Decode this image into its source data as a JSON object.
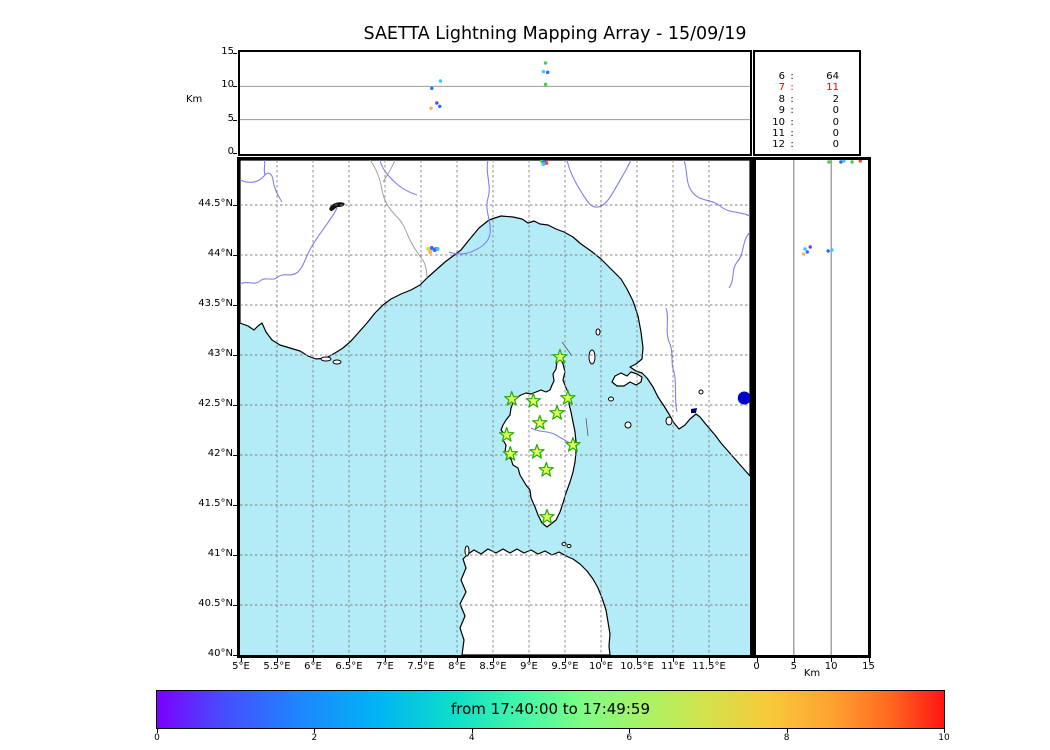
{
  "title": "SAETTA Lightning Mapping Array - 15/09/19",
  "panels": {
    "top": {
      "ylabel": "Km",
      "yticks": [
        {
          "v": 0,
          "label": "0"
        },
        {
          "v": 5,
          "label": "5"
        },
        {
          "v": 10,
          "label": "10"
        },
        {
          "v": 15,
          "label": "15"
        }
      ],
      "gridlines": [
        5,
        10
      ]
    },
    "stats": {
      "rows": [
        {
          "label": "6",
          "value": "64",
          "color": "#000000"
        },
        {
          "label": "7",
          "value": "11",
          "color": "#e8000b"
        },
        {
          "label": "8",
          "value": "2",
          "color": "#000000"
        },
        {
          "label": "9",
          "value": "0",
          "color": "#000000"
        },
        {
          "label": "10",
          "value": "0",
          "color": "#000000"
        },
        {
          "label": "11",
          "value": "0",
          "color": "#000000"
        },
        {
          "label": "12",
          "value": "0",
          "color": "#000000"
        }
      ]
    },
    "map": {
      "sea_color": "#b3ecf6",
      "land_color": "#ffffff",
      "river_color": "#8080ee",
      "lat_ticks": [
        {
          "v": 44.5,
          "label": "44.5°N"
        },
        {
          "v": 44,
          "label": "44°N"
        },
        {
          "v": 43.5,
          "label": "43.5°N"
        },
        {
          "v": 43,
          "label": "43°N"
        },
        {
          "v": 42.5,
          "label": "42.5°N"
        },
        {
          "v": 42,
          "label": "42°N"
        },
        {
          "v": 41.5,
          "label": "41.5°N"
        },
        {
          "v": 41,
          "label": "41°N"
        },
        {
          "v": 40.5,
          "label": "40.5°N"
        },
        {
          "v": 40,
          "label": "40°N"
        }
      ],
      "lon_ticks": [
        {
          "v": 5,
          "label": "5°E"
        },
        {
          "v": 5.5,
          "label": "5.5°E"
        },
        {
          "v": 6,
          "label": "6°E"
        },
        {
          "v": 6.5,
          "label": "6.5°E"
        },
        {
          "v": 7,
          "label": "7°E"
        },
        {
          "v": 7.5,
          "label": "7.5°E"
        },
        {
          "v": 8,
          "label": "8°E"
        },
        {
          "v": 8.5,
          "label": "8.5°E"
        },
        {
          "v": 9,
          "label": "9°E"
        },
        {
          "v": 9.5,
          "label": "9.5°E"
        },
        {
          "v": 10,
          "label": "10°E"
        },
        {
          "v": 10.5,
          "label": "10.5°E"
        },
        {
          "v": 11,
          "label": "11°E"
        },
        {
          "v": 11.5,
          "label": "11.5°E"
        }
      ],
      "station_style": {
        "fill": "#e8ff60",
        "stroke": "#1faf00"
      },
      "marker": {
        "lon": 11.99,
        "lat": 42.57,
        "color": "#0000cc",
        "radius": 6.5
      }
    },
    "right": {
      "xlabel": "Km",
      "xticks": [
        {
          "v": 0,
          "label": "0"
        },
        {
          "v": 5,
          "label": "5"
        },
        {
          "v": 10,
          "label": "10"
        },
        {
          "v": 15,
          "label": "15"
        }
      ],
      "gridlines": [
        5,
        10
      ]
    },
    "colorbar": {
      "label": "from 17:40:00 to 17:49:59",
      "ticks": [
        {
          "v": 0,
          "label": "0"
        },
        {
          "v": 2,
          "label": "2"
        },
        {
          "v": 4,
          "label": "4"
        },
        {
          "v": 6,
          "label": "6"
        },
        {
          "v": 8,
          "label": "8"
        },
        {
          "v": 10,
          "label": "10"
        }
      ],
      "gradient": [
        {
          "p": 0,
          "c": "#7a00ff"
        },
        {
          "p": 8,
          "c": "#4a4aff"
        },
        {
          "p": 18,
          "c": "#1e86ff"
        },
        {
          "p": 28,
          "c": "#00b4f4"
        },
        {
          "p": 38,
          "c": "#0fdfc8"
        },
        {
          "p": 47,
          "c": "#49f7a7"
        },
        {
          "p": 54,
          "c": "#7dfc84"
        },
        {
          "p": 62,
          "c": "#a9f266"
        },
        {
          "p": 70,
          "c": "#d4e24a"
        },
        {
          "p": 78,
          "c": "#f7c93a"
        },
        {
          "p": 86,
          "c": "#ffa030"
        },
        {
          "p": 93,
          "c": "#ff6a20"
        },
        {
          "p": 100,
          "c": "#ff1512"
        }
      ]
    }
  },
  "chart_data": [
    {
      "type": "scatter",
      "panel": "top",
      "ylabel": "Km",
      "ylim": [
        0,
        15
      ],
      "xlim_lon": [
        5,
        12.08
      ],
      "points_lon_alt": [
        [
          9.23,
          13.5,
          "#3fd43f"
        ],
        [
          9.2,
          12.2,
          "#35c8ff"
        ],
        [
          9.26,
          12.1,
          "#2a6cff"
        ],
        [
          9.23,
          10.3,
          "#3fd43f"
        ],
        [
          7.77,
          10.8,
          "#35c8ff"
        ],
        [
          7.65,
          9.7,
          "#2a6cff"
        ],
        [
          7.72,
          7.5,
          "#6a3bff"
        ],
        [
          7.76,
          7.0,
          "#2a6cff"
        ],
        [
          7.64,
          6.7,
          "#ffb347"
        ]
      ]
    },
    {
      "type": "scatter",
      "panel": "map",
      "xlim_lon": [
        5,
        12.08
      ],
      "ylim_lat": [
        40,
        44.95
      ],
      "stations_lon_lat": [
        [
          9.43,
          42.98
        ],
        [
          8.76,
          42.56
        ],
        [
          9.06,
          42.54
        ],
        [
          9.54,
          42.57
        ],
        [
          9.39,
          42.42
        ],
        [
          9.15,
          42.32
        ],
        [
          8.69,
          42.2
        ],
        [
          9.61,
          42.1
        ],
        [
          8.74,
          42.01
        ],
        [
          9.11,
          42.03
        ],
        [
          9.24,
          41.85
        ],
        [
          9.25,
          41.38
        ]
      ],
      "points_lon_lat": [
        [
          7.6,
          44.06,
          "#e8d83a"
        ],
        [
          7.65,
          44.07,
          "#2a6cff"
        ],
        [
          7.69,
          44.05,
          "#2a6cff"
        ],
        [
          7.71,
          44.06,
          "#6a3bff"
        ],
        [
          7.73,
          44.06,
          "#35c8ff"
        ],
        [
          7.63,
          44.03,
          "#ffb347"
        ],
        [
          9.18,
          44.94,
          "#3fd43f"
        ],
        [
          9.21,
          44.93,
          "#2a6cff"
        ],
        [
          9.24,
          44.92,
          "#ff4433"
        ],
        [
          9.2,
          44.91,
          "#35c8ff"
        ]
      ]
    },
    {
      "type": "scatter",
      "panel": "right",
      "xlabel": "Km",
      "xlim": [
        0,
        15
      ],
      "ylim_lat": [
        40,
        44.95
      ],
      "points_alt_lat": [
        [
          9.7,
          44.93,
          "#3fd43f"
        ],
        [
          11.3,
          44.93,
          "#2a6cff"
        ],
        [
          11.7,
          44.94,
          "#35c8ff"
        ],
        [
          12.8,
          44.93,
          "#3fd43f"
        ],
        [
          13.9,
          44.94,
          "#ff4433"
        ],
        [
          6.5,
          44.06,
          "#35c8ff"
        ],
        [
          6.3,
          44.01,
          "#ffb347"
        ],
        [
          6.8,
          44.03,
          "#2a6cff"
        ],
        [
          7.2,
          44.08,
          "#6a3bff"
        ],
        [
          9.6,
          44.04,
          "#2a6cff"
        ],
        [
          10.1,
          44.05,
          "#35c8ff"
        ]
      ]
    },
    {
      "type": "table",
      "panel": "stats",
      "title": "source counts per station count",
      "rows": [
        [
          "6",
          64
        ],
        [
          "7",
          11
        ],
        [
          "8",
          2
        ],
        [
          "9",
          0
        ],
        [
          "10",
          0
        ],
        [
          "11",
          0
        ],
        [
          "12",
          0
        ]
      ],
      "highlight_row": "7"
    },
    {
      "type": "colorbar",
      "label": "from 17:40:00 to 17:49:59",
      "ticks": [
        0,
        2,
        4,
        6,
        8,
        10
      ],
      "range": [
        0,
        10
      ]
    }
  ]
}
